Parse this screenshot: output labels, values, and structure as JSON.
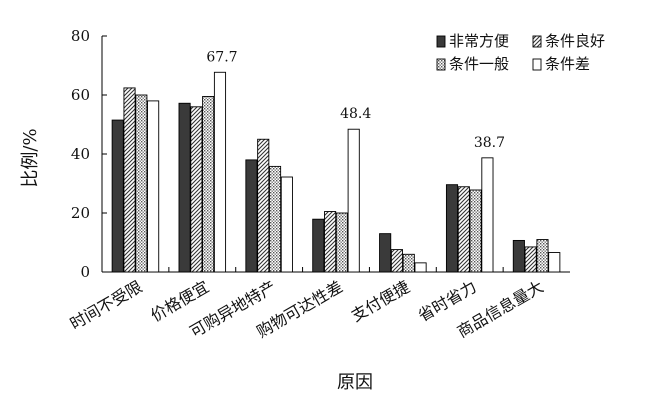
{
  "chart_data": {
    "type": "bar",
    "title": "",
    "xlabel": "原因",
    "ylabel": "比例/%",
    "ylim": [
      0,
      80
    ],
    "yticks": [
      0,
      20,
      40,
      60,
      80
    ],
    "grid": false,
    "legend": {
      "position": "top-right",
      "columns": 2
    },
    "categories": [
      "时间不受限",
      "价格便宜",
      "可购异地特产",
      "购物可达性差",
      "支付便捷",
      "省时省力",
      "商品信息量大"
    ],
    "series": [
      {
        "name": "非常方便",
        "pattern": "solid-dark",
        "color": "#3a3a3a",
        "values": [
          51.5,
          57.2,
          38.0,
          17.9,
          13.0,
          29.6,
          10.7
        ]
      },
      {
        "name": "条件良好",
        "pattern": "diagonal-hatch",
        "color": "#555555",
        "values": [
          62.4,
          56.0,
          45.0,
          20.5,
          7.6,
          28.9,
          8.5
        ]
      },
      {
        "name": "条件一般",
        "pattern": "dots",
        "color": "#777777",
        "values": [
          60.0,
          59.5,
          35.8,
          20.0,
          6.0,
          27.8,
          11.0
        ]
      },
      {
        "name": "条件差",
        "pattern": "white",
        "color": "#ffffff",
        "values": [
          58.0,
          67.7,
          32.2,
          48.4,
          3.1,
          38.7,
          6.6
        ]
      }
    ],
    "annotations": [
      {
        "text": "67.7",
        "category": "价格便宜",
        "series": "条件差"
      },
      {
        "text": "48.4",
        "category": "购物可达性差",
        "series": "条件差"
      },
      {
        "text": "38.7",
        "category": "省时省力",
        "series": "条件差"
      }
    ]
  }
}
